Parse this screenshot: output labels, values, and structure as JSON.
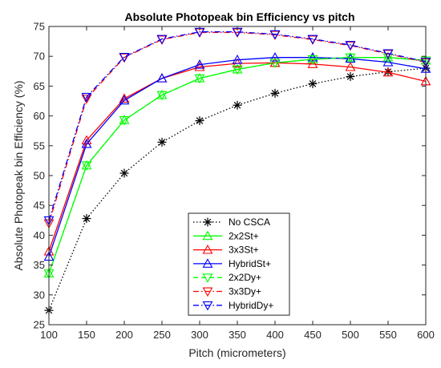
{
  "chart_data": {
    "type": "line",
    "title": "Absolute Photopeak bin Efficiency vs pitch",
    "xlabel": "Pitch (micrometers)",
    "ylabel": "Absolute Photopeak bin Efficiency (%)",
    "xlim": [
      100,
      600
    ],
    "ylim": [
      25,
      75
    ],
    "xticks": [
      100,
      150,
      200,
      250,
      300,
      350,
      400,
      450,
      500,
      550,
      600
    ],
    "yticks": [
      25,
      30,
      35,
      40,
      45,
      50,
      55,
      60,
      65,
      70,
      75
    ],
    "grid": false,
    "legend_position": "bottom-center",
    "x": [
      100,
      150,
      200,
      250,
      300,
      350,
      400,
      450,
      500,
      550,
      600
    ],
    "series": [
      {
        "name": "No CSCA",
        "color": "#000000",
        "line": "dotted",
        "marker": "asterisk",
        "values": [
          27.4,
          42.8,
          50.4,
          55.6,
          59.2,
          61.8,
          63.8,
          65.4,
          66.6,
          67.4,
          68.0
        ]
      },
      {
        "name": "2x2St+",
        "color": "#00ff00",
        "line": "solid",
        "marker": "triangle-up",
        "values": [
          33.6,
          51.7,
          59.3,
          63.5,
          66.3,
          67.8,
          68.9,
          69.5,
          69.8,
          69.8,
          69.3
        ]
      },
      {
        "name": "3x3St+",
        "color": "#ff0000",
        "line": "solid",
        "marker": "triangle-up",
        "values": [
          37.3,
          55.9,
          62.9,
          66.3,
          68.2,
          68.8,
          68.9,
          68.7,
          68.2,
          67.3,
          65.8
        ]
      },
      {
        "name": "HybridSt+",
        "color": "#0000ff",
        "line": "solid",
        "marker": "triangle-up",
        "values": [
          36.4,
          55.3,
          62.6,
          66.3,
          68.6,
          69.4,
          69.8,
          69.8,
          69.6,
          69.0,
          67.9
        ]
      },
      {
        "name": "2x2Dy+",
        "color": "#00ff00",
        "line": "dashed",
        "marker": "triangle-down",
        "values": [
          33.6,
          51.7,
          59.3,
          63.5,
          66.3,
          67.8,
          68.9,
          69.5,
          69.8,
          69.8,
          69.3
        ]
      },
      {
        "name": "3x3Dy+",
        "color": "#ff0000",
        "line": "dashdot",
        "marker": "triangle-down",
        "values": [
          42.0,
          62.9,
          69.8,
          72.8,
          74.0,
          74.0,
          73.6,
          72.8,
          71.8,
          70.4,
          69.0
        ]
      },
      {
        "name": "HybridDy+",
        "color": "#0000ff",
        "line": "dashdot",
        "marker": "triangle-down",
        "values": [
          42.5,
          63.2,
          69.9,
          72.9,
          74.1,
          74.1,
          73.7,
          72.9,
          71.9,
          70.5,
          69.1
        ]
      }
    ]
  }
}
